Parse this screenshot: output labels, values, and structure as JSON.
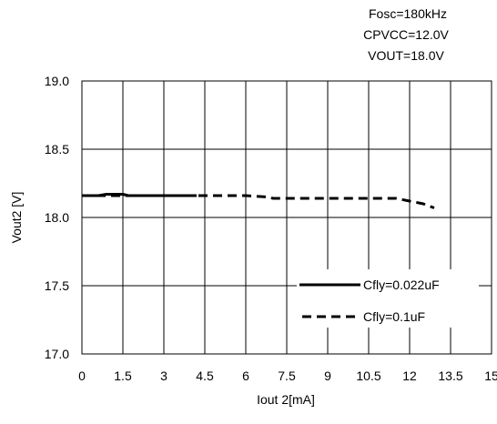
{
  "conditions": [
    "Fosc=180kHz",
    "CPVCC=12.0V",
    "VOUT=18.0V"
  ],
  "chart_data": {
    "type": "line",
    "title": "",
    "xlabel": "Iout 2[mA]",
    "ylabel": "Vout2 [V]",
    "xlim": [
      0,
      15
    ],
    "ylim": [
      17.0,
      19.0
    ],
    "x_ticks": [
      "0",
      "1.5",
      "3",
      "4.5",
      "6",
      "7.5",
      "9",
      "10.5",
      "12",
      "13.5",
      "15"
    ],
    "y_ticks": [
      "17.0",
      "17.5",
      "18.0",
      "18.5",
      "19.0"
    ],
    "x_tick_values": [
      0,
      1.5,
      3,
      4.5,
      6,
      7.5,
      9,
      10.5,
      12,
      13.5,
      15
    ],
    "y_tick_values": [
      17.0,
      17.5,
      18.0,
      18.5,
      19.0
    ],
    "grid": true,
    "legend_position": "bottom-right",
    "series": [
      {
        "name": "Cfly=0.022uF",
        "style": "solid",
        "color": "#000000",
        "x": [
          0,
          0.3,
          0.6,
          0.9,
          1.2,
          1.5,
          1.7,
          2.0,
          3.0,
          4.0,
          4.2
        ],
        "y": [
          18.16,
          18.16,
          18.16,
          18.17,
          18.17,
          18.17,
          18.16,
          18.16,
          18.16,
          18.16,
          18.16
        ]
      },
      {
        "name": "Cfly=0.1uF",
        "style": "dashed",
        "color": "#000000",
        "x": [
          0,
          0.5,
          1.0,
          1.5,
          2.0,
          3.0,
          4.0,
          5.0,
          6.0,
          6.8,
          7.0,
          8.0,
          9.0,
          10.0,
          11.0,
          11.5,
          12.0,
          12.5,
          12.9
        ],
        "y": [
          18.16,
          18.16,
          18.16,
          18.16,
          18.16,
          18.16,
          18.16,
          18.16,
          18.16,
          18.15,
          18.14,
          18.14,
          18.14,
          18.14,
          18.14,
          18.14,
          18.12,
          18.1,
          18.07
        ]
      }
    ]
  }
}
